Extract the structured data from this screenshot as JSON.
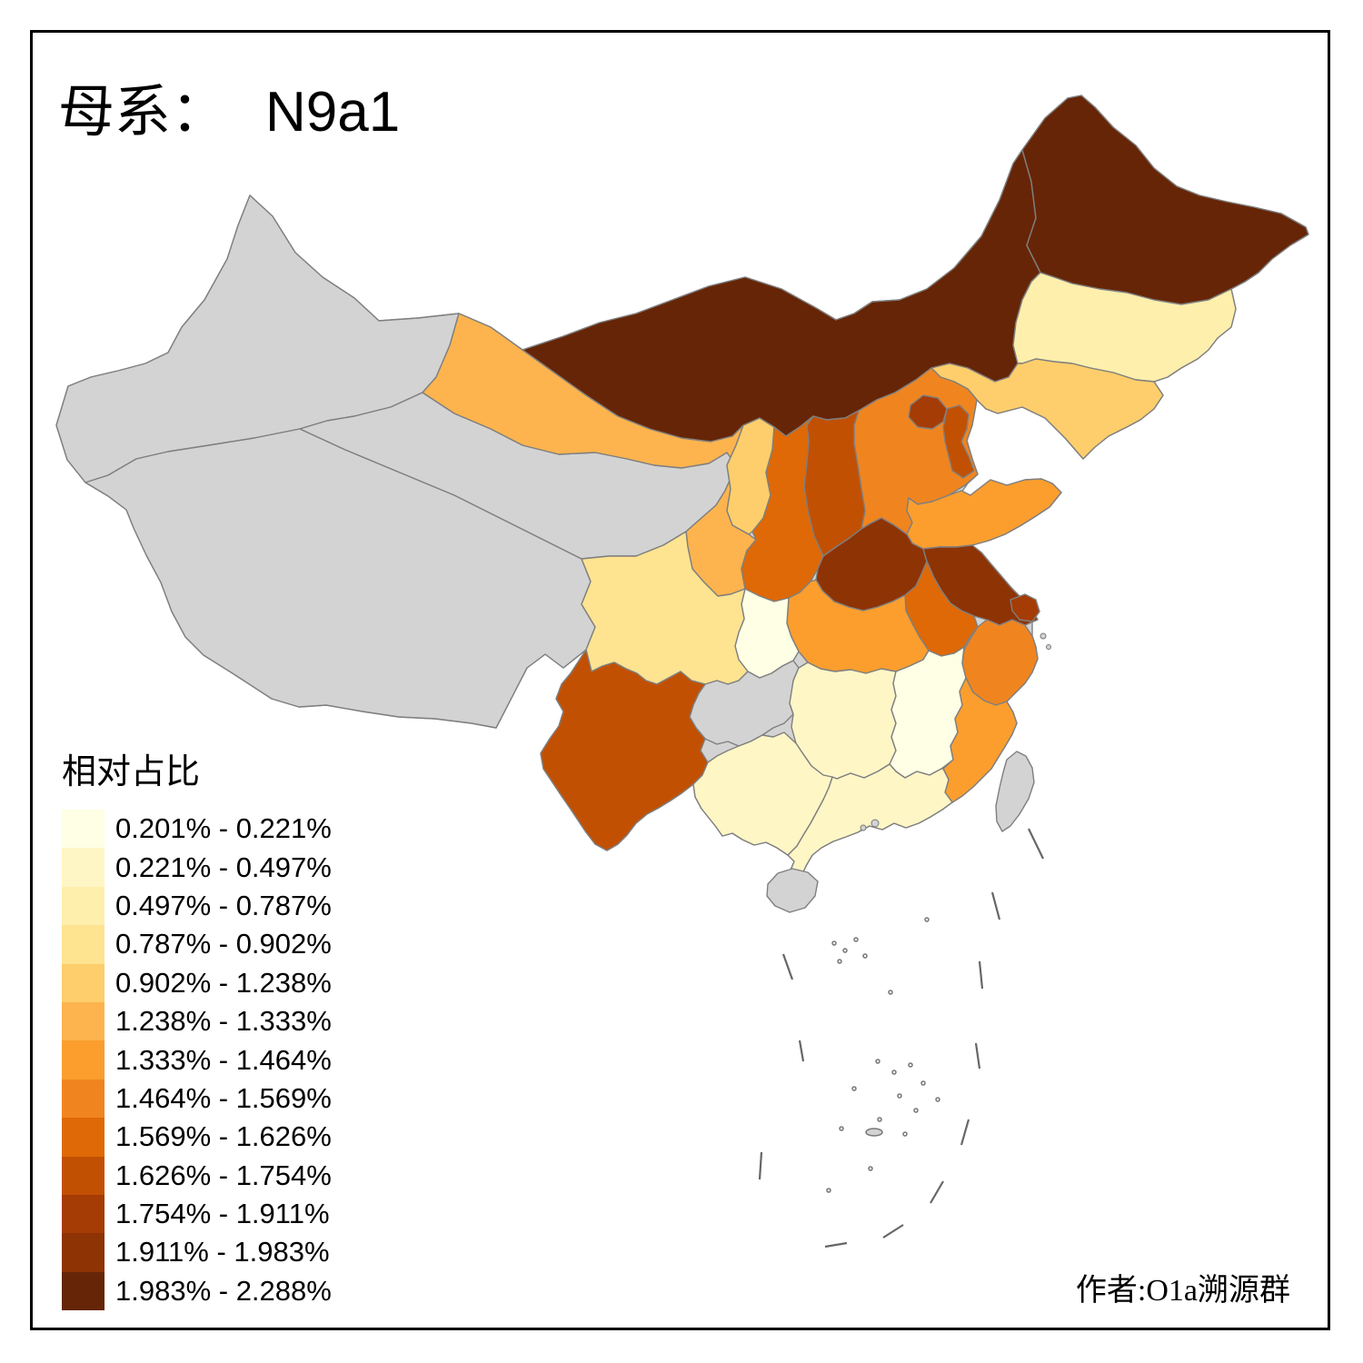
{
  "title": {
    "prefix": "母系：",
    "haplogroup": "N9a1"
  },
  "legend_title": "相对占比",
  "credit": "作者:O1a溯源群",
  "chart_data": {
    "type": "heatmap",
    "subtype": "choropleth-map-of-china",
    "title": "母系： N9a1",
    "legend_title": "相对占比",
    "legend_position": "bottom-left",
    "bins": [
      "0.201% - 0.221%",
      "0.221% - 0.497%",
      "0.497% - 0.787%",
      "0.787% - 0.902%",
      "0.902% - 1.238%",
      "1.238% - 1.333%",
      "1.333% - 1.464%",
      "1.464% - 1.569%",
      "1.569% - 1.626%",
      "1.626% - 1.754%",
      "1.754% - 1.911%",
      "1.911% - 1.983%",
      "1.983% - 2.288%"
    ],
    "bin_colors": [
      "#FFFFE5",
      "#FFF6C6",
      "#FEEFAC",
      "#FEE391",
      "#FDCE6B",
      "#FDB44E",
      "#FB9E2E",
      "#F08520",
      "#DF6906",
      "#C25003",
      "#A53C05",
      "#8E3304",
      "#662506"
    ],
    "no_data_color": "#D3D3D3",
    "border_color": "#7F7F7F",
    "regions": [
      {
        "name": "Heilongjiang",
        "bin": 13
      },
      {
        "name": "InnerMongolia",
        "bin": 13
      },
      {
        "name": "Henan",
        "bin": 12
      },
      {
        "name": "Jiangsu",
        "bin": 12
      },
      {
        "name": "Beijing",
        "bin": 11
      },
      {
        "name": "Shanghai",
        "bin": 11
      },
      {
        "name": "Shanxi",
        "bin": 10
      },
      {
        "name": "Tianjin",
        "bin": 10
      },
      {
        "name": "Yunnan",
        "bin": 10
      },
      {
        "name": "Shaanxi",
        "bin": 9
      },
      {
        "name": "Anhui",
        "bin": 9
      },
      {
        "name": "Hebei",
        "bin": 8
      },
      {
        "name": "Zhejiang",
        "bin": 8
      },
      {
        "name": "Shandong",
        "bin": 7
      },
      {
        "name": "Hubei",
        "bin": 7
      },
      {
        "name": "Fujian",
        "bin": 7
      },
      {
        "name": "Gansu",
        "bin": 6
      },
      {
        "name": "Liaoning",
        "bin": 5
      },
      {
        "name": "Ningxia",
        "bin": 5
      },
      {
        "name": "Sichuan",
        "bin": 4
      },
      {
        "name": "Jilin",
        "bin": 3
      },
      {
        "name": "Hunan",
        "bin": 2
      },
      {
        "name": "Guangdong",
        "bin": 2
      },
      {
        "name": "Guangxi",
        "bin": 2
      },
      {
        "name": "Chongqing",
        "bin": 1
      },
      {
        "name": "Jiangxi",
        "bin": 1
      },
      {
        "name": "Xinjiang",
        "bin": null
      },
      {
        "name": "Tibet",
        "bin": null
      },
      {
        "name": "Qinghai",
        "bin": null
      },
      {
        "name": "Guizhou",
        "bin": null
      },
      {
        "name": "Hainan",
        "bin": null
      },
      {
        "name": "Taiwan",
        "bin": null
      }
    ]
  }
}
